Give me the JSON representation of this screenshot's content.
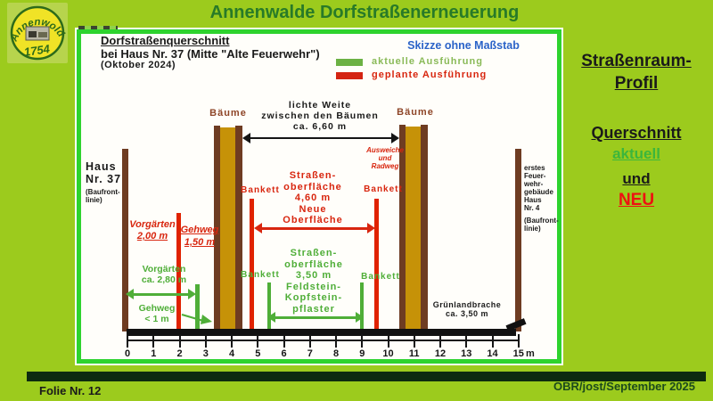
{
  "slide": {
    "header_title": "Annenwalde Dorfstraßenerneuerung",
    "footer_left": "Folie Nr. 12",
    "footer_right": "OBR/jost/September 2025"
  },
  "logo": {
    "arc_text": "Annenwolde",
    "year": "1754"
  },
  "sidebar": {
    "profil_line1": "Straßenraum-",
    "profil_line2": "Profil ",
    "querschnitt": "Querschnitt",
    "aktuell": "aktuell",
    "und": "und",
    "neu": "NEU"
  },
  "panel": {
    "title_line1": "Dorfstraßenquerschnitt",
    "title_line2": "bei Haus Nr. 37 (Mitte \"Alte Feuerwehr\")",
    "title_line3": "(Oktober 2024)",
    "note": "Skizze ohne Maßstab",
    "legend_current": "aktuelle Ausführung",
    "legend_planned": "geplante Ausführung"
  },
  "diagram": {
    "haus37": [
      "Haus",
      "Nr. 37",
      "(Baufront-",
      "linie)"
    ],
    "feuerwehr": [
      "erstes",
      "Feuer-",
      "wehr-",
      "gebäude",
      "Haus",
      "Nr. 4",
      "(Baufront-",
      "linie)"
    ],
    "baeume_left": "Bäume",
    "baeume_right": "Bäume",
    "clearance": [
      "lichte Weite",
      "zwischen den Bäumen",
      "ca. 6,60 m"
    ],
    "ausweiche": [
      "Ausweiche",
      "und",
      "Radweg"
    ],
    "bankett": "Bankett",
    "road_new": [
      "Straßen-",
      "oberfläche",
      "4,60 m",
      "Neue",
      "Oberfläche"
    ],
    "road_old": [
      "Straßen-",
      "oberfläche",
      "3,50 m",
      "Feldstein-",
      "Kopfstein-",
      "pflaster"
    ],
    "vorgaerten_new": [
      "Vorgärten",
      "2,00 m"
    ],
    "gehweg_new": [
      "Gehweg",
      "1,50 m"
    ],
    "vorgaerten_old": [
      "Vorgärten",
      "ca. 2,80 m"
    ],
    "gehweg_old": [
      "Gehweg",
      "< 1 m"
    ],
    "gruenland": [
      "Grünlandbrache",
      "ca. 3,50 m"
    ],
    "scale": {
      "ticks": [
        "0",
        "1",
        "2",
        "3",
        "4",
        "5",
        "6",
        "7",
        "8",
        "9",
        "10",
        "11",
        "12",
        "13",
        "14",
        "15"
      ],
      "unit": "m"
    }
  },
  "colors": {
    "background": "#9ccb1d",
    "header_green": "#287a28",
    "panel_border_green": "#2ed32e",
    "annotation_red": "#d8260f",
    "annotation_green": "#4fae38",
    "legend_green_text": "#8aba58",
    "note_blue": "#2b63c8",
    "tree_gold": "#c69208",
    "bar_brown": "#6e3c22",
    "baeume_label": "#8e4527",
    "footer_bar": "#0d2b10",
    "footer_text_green": "#1c4a1c",
    "sidebar_neu_red": "#ee1111"
  }
}
